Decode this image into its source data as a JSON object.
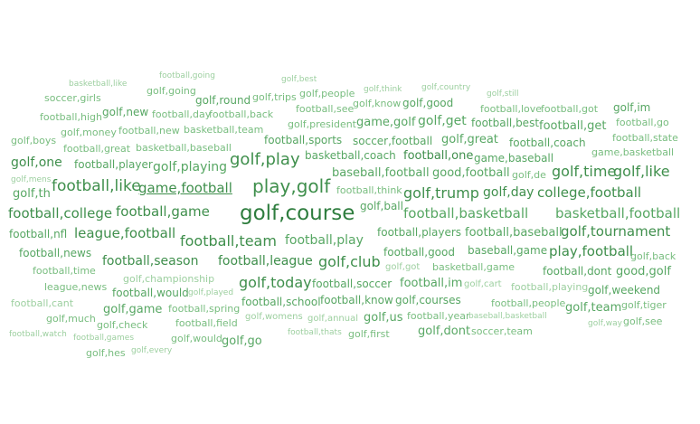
{
  "cloud": {
    "words": [
      "basketball,like",
      "football,going",
      "golf,best",
      "golf,going",
      "golf,think",
      "golf,country",
      "golf,still",
      "soccer,girls",
      "golf,round",
      "golf,trips",
      "golf,people",
      "golf,know",
      "golf,good",
      "football,high",
      "golf,new",
      "football,day",
      "football,back",
      "football,see",
      "football,love",
      "football,got",
      "golf,im",
      "golf,money",
      "football,new",
      "basketball,team",
      "golf,president",
      "game,golf",
      "golf,get",
      "football,best",
      "football,get",
      "football,go",
      "golf,boys",
      "football,sports",
      "soccer,football",
      "golf,great",
      "football,coach",
      "football,state",
      "football,great",
      "basketball,baseball",
      "game,basketball",
      "golf,one",
      "football,player",
      "golf,playing",
      "golf,play",
      "basketball,coach",
      "football,one",
      "game,baseball",
      "golf,mens",
      "baseball,football",
      "good,football",
      "golf,de",
      "golf,time",
      "golf,like",
      "golf,th",
      "football,like",
      "game,football",
      "play,golf",
      "football,think",
      "golf,trump",
      "golf,day",
      "college,football",
      "football,college",
      "football,game",
      "golf,course",
      "golf,ball",
      "football,basketball",
      "basketball,football",
      "football,nfl",
      "league,football",
      "football,team",
      "football,play",
      "football,players",
      "football,baseball",
      "golf,tournament",
      "football,news",
      "football,good",
      "baseball,game",
      "play,football",
      "golf,back",
      "football,time",
      "football,season",
      "football,league",
      "golf,club",
      "golf,got",
      "basketball,game",
      "football,dont",
      "good,golf",
      "golf,championship",
      "league,news",
      "football,would",
      "golf,played",
      "golf,today",
      "football,soccer",
      "football,im",
      "golf,cart",
      "football,playing",
      "golf,weekend",
      "football,cant",
      "football,school",
      "football,know",
      "golf,courses",
      "football,people",
      "golf,team",
      "golf,tiger",
      "golf,game",
      "football,spring",
      "golf,much",
      "golf,womens",
      "golf,annual",
      "golf,us",
      "football,year",
      "baseball,basketball",
      "golf,check",
      "football,field",
      "golf,way",
      "golf,see",
      "football,watch",
      "football,games",
      "football,thats",
      "golf,first",
      "golf,dont",
      "soccer,team",
      "golf,would",
      "golf,go",
      "golf,hes",
      "golf,every"
    ],
    "colors": [
      "#2e7d3e",
      "#3f8f4c",
      "#57a763",
      "#78bd7f",
      "#9ccf9f"
    ]
  }
}
